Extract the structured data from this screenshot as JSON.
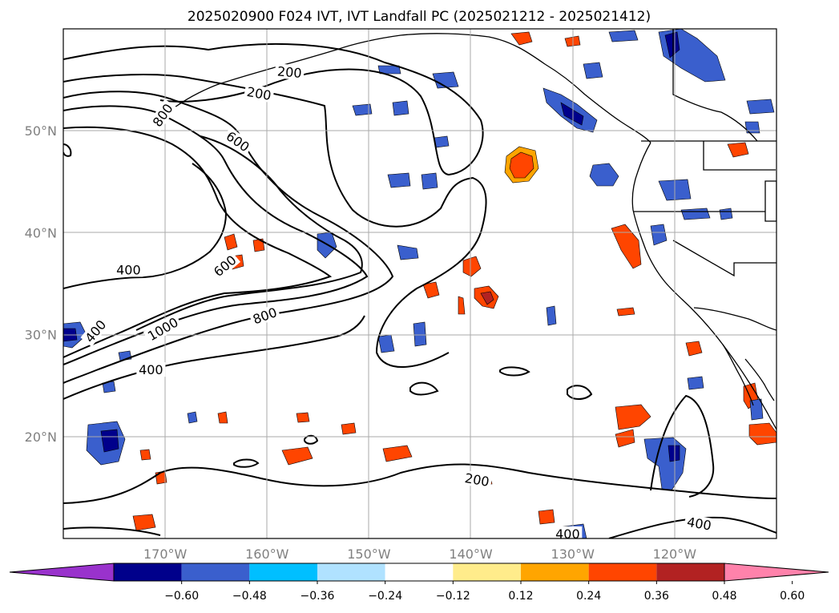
{
  "title": "2025020900 F024 IVT, IVT Landfall PC (2025021212 - 2025021412)",
  "map": {
    "lon_range": [
      -180,
      -110
    ],
    "lat_range": [
      10,
      60
    ],
    "lat_ticks": [
      {
        "value": 50,
        "label": "50°N"
      },
      {
        "value": 40,
        "label": "40°N"
      },
      {
        "value": 30,
        "label": "30°N"
      },
      {
        "value": 20,
        "label": "20°N"
      }
    ],
    "lon_ticks": [
      {
        "value": -170,
        "label": "170°W"
      },
      {
        "value": -160,
        "label": "160°W"
      },
      {
        "value": -150,
        "label": "150°W"
      },
      {
        "value": -140,
        "label": "140°W"
      },
      {
        "value": -130,
        "label": "130°W"
      },
      {
        "value": -120,
        "label": "120°W"
      }
    ],
    "grid": true,
    "projection": "equirectangular"
  },
  "ivt_contour_labels": [
    {
      "text": "200",
      "lon": -157.8,
      "lat": 55.7,
      "rot": 5
    },
    {
      "text": "200",
      "lon": -160.8,
      "lat": 53.6,
      "rot": 10
    },
    {
      "text": "800",
      "lon": -170.2,
      "lat": 51.5,
      "rot": -55
    },
    {
      "text": "600",
      "lon": -162.9,
      "lat": 48.9,
      "rot": 35
    },
    {
      "text": "400",
      "lon": -173.6,
      "lat": 36.3,
      "rot": 0
    },
    {
      "text": "600",
      "lon": -164.1,
      "lat": 36.7,
      "rot": -40
    },
    {
      "text": "800",
      "lon": -160.2,
      "lat": 31.8,
      "rot": -20
    },
    {
      "text": "400",
      "lon": -176.8,
      "lat": 30.3,
      "rot": -50
    },
    {
      "text": "1000",
      "lon": -170.2,
      "lat": 30.5,
      "rot": -30
    },
    {
      "text": "400",
      "lon": -171.4,
      "lat": 26.5,
      "rot": 0
    },
    {
      "text": "200",
      "lon": -139.4,
      "lat": 15.7,
      "rot": 10
    },
    {
      "text": "400",
      "lon": -130.5,
      "lat": 10.4,
      "rot": 0
    },
    {
      "text": "400",
      "lon": -117.6,
      "lat": 11.4,
      "rot": 10
    }
  ],
  "colorbar": {
    "colors": [
      "#9932cc",
      "#00008b",
      "#3a5fcd",
      "#00bfff",
      "#b0e2ff",
      "#ffffff",
      "#ffec8b",
      "#ffa500",
      "#ff4500",
      "#b22222",
      "#ff82ab"
    ],
    "tick_labels": [
      "−0.60",
      "−0.48",
      "−0.36",
      "−0.24",
      "−0.12",
      "0.12",
      "0.24",
      "0.36",
      "0.48",
      "0.60"
    ],
    "extend": "both"
  }
}
